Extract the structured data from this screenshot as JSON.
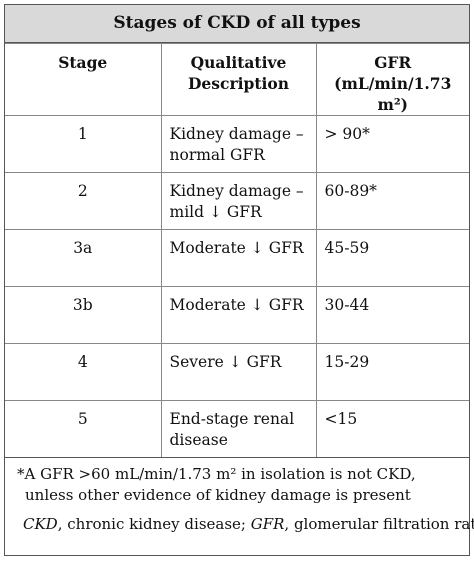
{
  "title": "Stages of CKD of all types",
  "table": {
    "header": [
      [
        "Stage"
      ],
      [
        "Qualitative",
        "Description"
      ],
      [
        "GFR",
        "(mL/min/1.73 m²)"
      ]
    ],
    "rows": [
      [
        "1",
        "Kidney damage – normal GFR",
        "> 90*"
      ],
      [
        "2",
        "Kidney damage – mild ↓ GFR",
        "60-89*"
      ],
      [
        "3a",
        "Moderate ↓ GFR",
        "45-59"
      ],
      [
        "3b",
        "Moderate ↓ GFR",
        "30-44"
      ],
      [
        "4",
        "Severe ↓ GFR",
        "15-29"
      ],
      [
        "5",
        "End-stage renal disease",
        "<15"
      ]
    ]
  },
  "footnotes": {
    "note": "*A GFR >60 mL/min/1.73 m² in isolation is not CKD, unless other evidence of kidney damage is present",
    "abbreviations": [
      [
        "CKD",
        ", chronic kidney disease; "
      ],
      [
        "GFR",
        ", glomerular filtration rate"
      ]
    ]
  }
}
